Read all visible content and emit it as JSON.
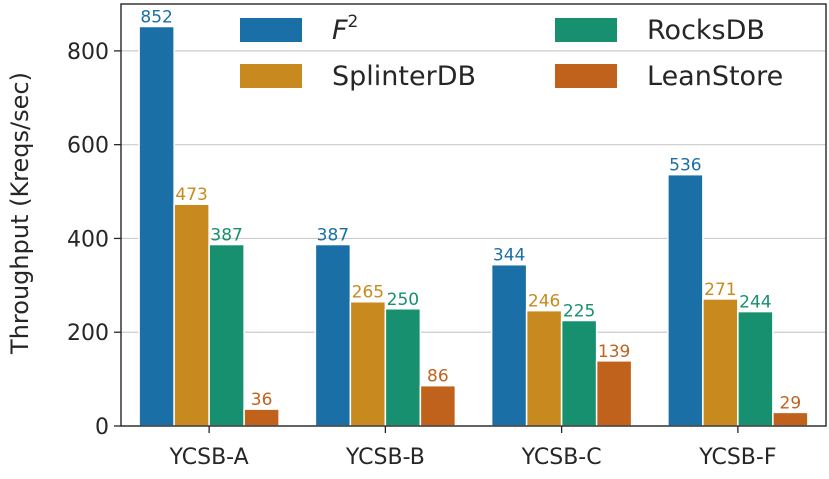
{
  "chart_data": {
    "type": "bar",
    "title": "",
    "xlabel": "",
    "ylabel": "Throughput (Kreqs/sec)",
    "ylim": [
      0,
      900
    ],
    "yticks": [
      0,
      200,
      400,
      600,
      800
    ],
    "grid": "horizontal",
    "legend_position": "top",
    "categories": [
      "YCSB-A",
      "YCSB-B",
      "YCSB-C",
      "YCSB-F"
    ],
    "series": [
      {
        "name": "F",
        "superscript": "2",
        "color": "#1a6fa6",
        "values": [
          852,
          387,
          344,
          536
        ]
      },
      {
        "name": "SplinterDB",
        "color": "#c88a1f",
        "values": [
          473,
          265,
          246,
          271
        ]
      },
      {
        "name": "RocksDB",
        "color": "#16906e",
        "values": [
          387,
          250,
          225,
          244
        ]
      },
      {
        "name": "LeanStore",
        "color": "#c0621c",
        "values": [
          36,
          86,
          139,
          29
        ]
      }
    ]
  }
}
